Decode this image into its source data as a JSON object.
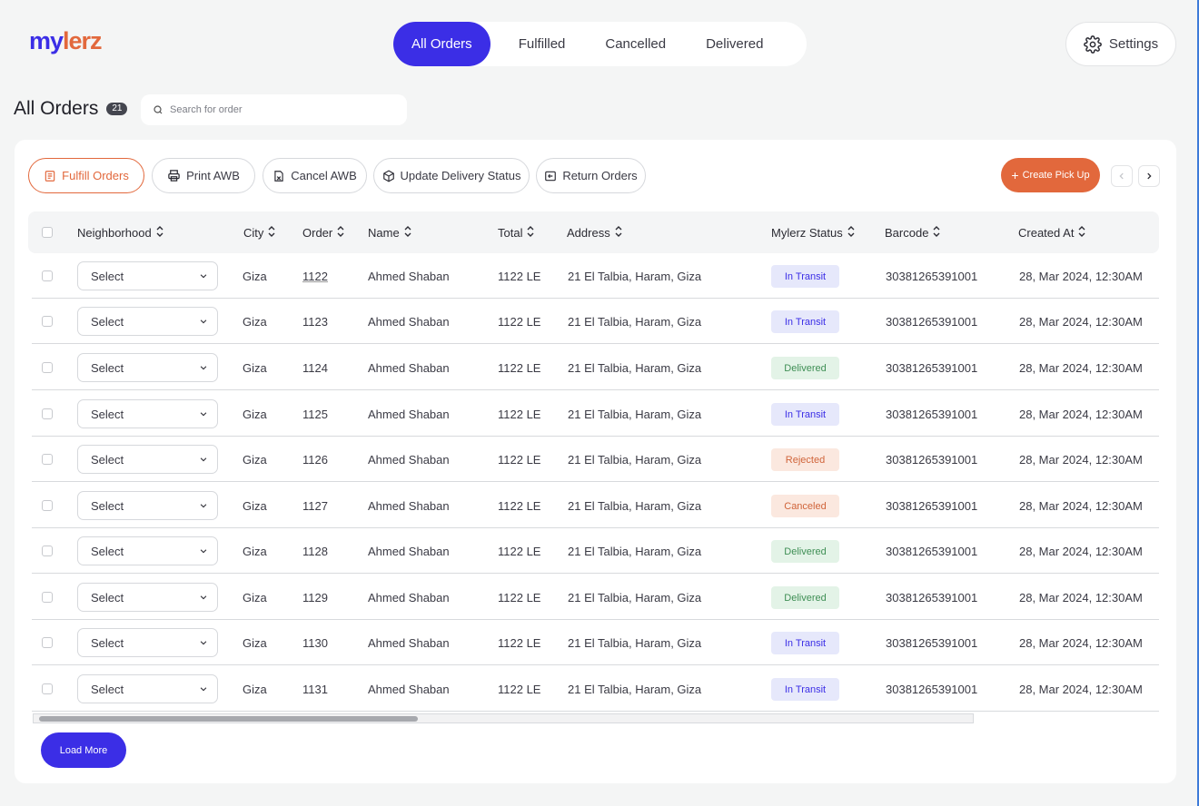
{
  "brand": {
    "logo_part1": "my",
    "logo_part2": "lerz"
  },
  "tabs": [
    {
      "label": "All Orders",
      "active": true
    },
    {
      "label": "Fulfilled",
      "active": false
    },
    {
      "label": "Cancelled",
      "active": false
    },
    {
      "label": "Delivered",
      "active": false
    }
  ],
  "settings": {
    "label": "Settings",
    "icon": "gear-icon"
  },
  "page": {
    "title": "All Orders",
    "count": "21"
  },
  "search": {
    "placeholder": "Search for order",
    "value": ""
  },
  "actions": {
    "fulfill": "Fulfill Orders",
    "print": "Print AWB",
    "cancel": "Cancel AWB",
    "update": "Update Delivery Status",
    "return": "Return Orders",
    "create": "Create Pick Up"
  },
  "columns": {
    "neighborhood": "Neighborhood",
    "city": "City",
    "order": "Order",
    "name": "Name",
    "total": "Total",
    "address": "Address",
    "status": "Mylerz Status",
    "barcode": "Barcode",
    "created": "Created At"
  },
  "colors": {
    "brand_blue": "#3b2ee6",
    "brand_orange": "#e2683c",
    "status_transit_bg": "#e6e8fb",
    "status_transit_fg": "#3b2ee6",
    "status_delivered_bg": "#e3f3e7",
    "status_delivered_fg": "#3f8f55",
    "status_rejected_bg": "#fbe8df",
    "status_rejected_fg": "#d0643a"
  },
  "rows": [
    {
      "neighborhood": "Select",
      "city": "Giza",
      "order": "1122",
      "name": "Ahmed Shaban",
      "total": "1122 LE",
      "address": "21 El Talbia, Haram, Giza",
      "status": "In Transit",
      "status_type": "transit",
      "barcode": "30381265391001",
      "created": "28, Mar 2024, 12:30AM"
    },
    {
      "neighborhood": "Select",
      "city": "Giza",
      "order": "1123",
      "name": "Ahmed Shaban",
      "total": "1122 LE",
      "address": "21 El Talbia, Haram, Giza",
      "status": "In Transit",
      "status_type": "transit",
      "barcode": "30381265391001",
      "created": "28, Mar 2024, 12:30AM"
    },
    {
      "neighborhood": "Select",
      "city": "Giza",
      "order": "1124",
      "name": "Ahmed Shaban",
      "total": "1122 LE",
      "address": "21 El Talbia, Haram, Giza",
      "status": "Delivered",
      "status_type": "delivered",
      "barcode": "30381265391001",
      "created": "28, Mar 2024, 12:30AM"
    },
    {
      "neighborhood": "Select",
      "city": "Giza",
      "order": "1125",
      "name": "Ahmed Shaban",
      "total": "1122 LE",
      "address": "21 El Talbia, Haram, Giza",
      "status": "In Transit",
      "status_type": "transit",
      "barcode": "30381265391001",
      "created": "28, Mar 2024, 12:30AM"
    },
    {
      "neighborhood": "Select",
      "city": "Giza",
      "order": "1126",
      "name": "Ahmed Shaban",
      "total": "1122 LE",
      "address": "21 El Talbia, Haram, Giza",
      "status": "Rejected",
      "status_type": "rejected",
      "barcode": "30381265391001",
      "created": "28, Mar 2024, 12:30AM"
    },
    {
      "neighborhood": "Select",
      "city": "Giza",
      "order": "1127",
      "name": "Ahmed Shaban",
      "total": "1122 LE",
      "address": "21 El Talbia, Haram, Giza",
      "status": "Canceled",
      "status_type": "rejected",
      "barcode": "30381265391001",
      "created": "28, Mar 2024, 12:30AM"
    },
    {
      "neighborhood": "Select",
      "city": "Giza",
      "order": "1128",
      "name": "Ahmed Shaban",
      "total": "1122 LE",
      "address": "21 El Talbia, Haram, Giza",
      "status": "Delivered",
      "status_type": "delivered",
      "barcode": "30381265391001",
      "created": "28, Mar 2024, 12:30AM"
    },
    {
      "neighborhood": "Select",
      "city": "Giza",
      "order": "1129",
      "name": "Ahmed Shaban",
      "total": "1122 LE",
      "address": "21 El Talbia, Haram, Giza",
      "status": "Delivered",
      "status_type": "delivered",
      "barcode": "30381265391001",
      "created": "28, Mar 2024, 12:30AM"
    },
    {
      "neighborhood": "Select",
      "city": "Giza",
      "order": "1130",
      "name": "Ahmed Shaban",
      "total": "1122 LE",
      "address": "21 El Talbia, Haram, Giza",
      "status": "In Transit",
      "status_type": "transit",
      "barcode": "30381265391001",
      "created": "28, Mar 2024, 12:30AM"
    },
    {
      "neighborhood": "Select",
      "city": "Giza",
      "order": "1131",
      "name": "Ahmed Shaban",
      "total": "1122 LE",
      "address": "21 El Talbia, Haram, Giza",
      "status": "In Transit",
      "status_type": "transit",
      "barcode": "30381265391001",
      "created": "28, Mar 2024, 12:30AM"
    }
  ],
  "load_more": "Load More"
}
